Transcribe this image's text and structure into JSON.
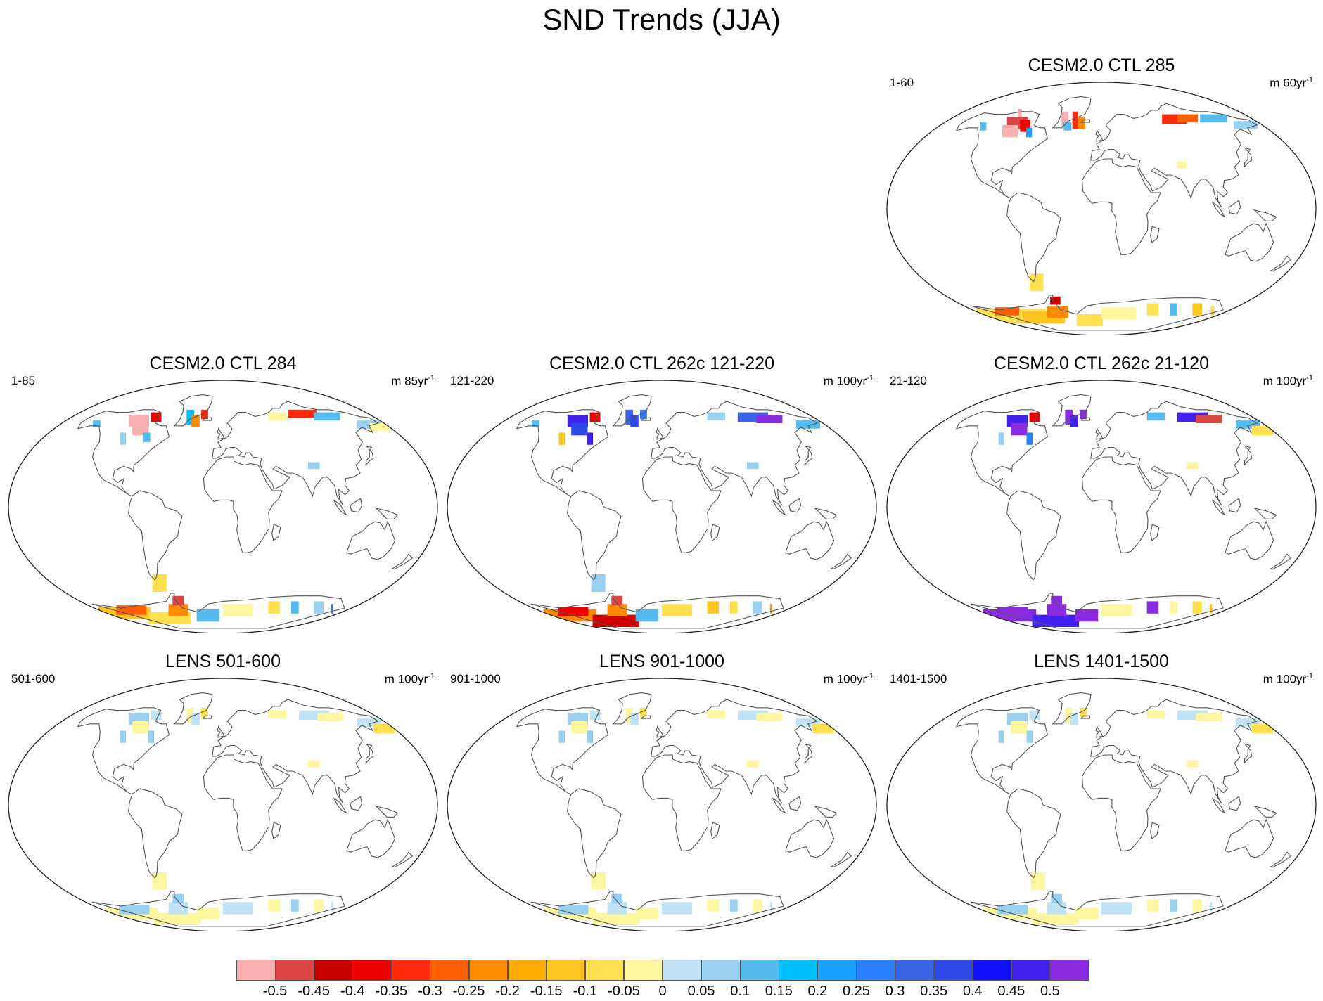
{
  "title": "SND Trends (JJA)",
  "panels": [
    {
      "id": "p1",
      "title": "CESM2.0 CTL 285",
      "range": "1-60",
      "units_prefix": "m 60yr",
      "units_exp": "-1",
      "pattern": "ctl285"
    },
    {
      "id": "p2",
      "title": "CESM2.0 CTL 284",
      "range": "1-85",
      "units_prefix": "m 85yr",
      "units_exp": "-1",
      "pattern": "ctl284"
    },
    {
      "id": "p3",
      "title": "CESM2.0 CTL 262c 121-220",
      "range": "121-220",
      "units_prefix": "m 100yr",
      "units_exp": "-1",
      "pattern": "ctl262a"
    },
    {
      "id": "p4",
      "title": "CESM2.0 CTL 262c 21-120",
      "range": "21-120",
      "units_prefix": "m 100yr",
      "units_exp": "-1",
      "pattern": "ctl262b"
    },
    {
      "id": "p5",
      "title": "LENS 501-600",
      "range": "501-600",
      "units_prefix": "m 100yr",
      "units_exp": "-1",
      "pattern": "lens"
    },
    {
      "id": "p6",
      "title": "LENS 901-1000",
      "range": "901-1000",
      "units_prefix": "m 100yr",
      "units_exp": "-1",
      "pattern": "lens"
    },
    {
      "id": "p7",
      "title": "LENS 1401-1500",
      "range": "1401-1500",
      "units_prefix": "m 100yr",
      "units_exp": "-1",
      "pattern": "lens"
    }
  ],
  "colorbar": {
    "labels": [
      "-0.5",
      "-0.45",
      "-0.4",
      "-0.35",
      "-0.3",
      "-0.25",
      "-0.2",
      "-0.15",
      "-0.1",
      "-0.05",
      "0",
      "0.05",
      "0.1",
      "0.15",
      "0.2",
      "0.25",
      "0.3",
      "0.35",
      "0.4",
      "0.45",
      "0.5"
    ],
    "colors": [
      "#f8b0b0",
      "#dd4444",
      "#cc0000",
      "#ee0000",
      "#ff2a0a",
      "#ff5f00",
      "#ff8a00",
      "#ffaa00",
      "#ffc51f",
      "#ffe050",
      "#fff7a0",
      "#bfe3f5",
      "#99d0ef",
      "#55bcf0",
      "#00bfff",
      "#18a0ff",
      "#2a80ff",
      "#3a64e6",
      "#2f48e8",
      "#1010ff",
      "#4422ee",
      "#8a2be2"
    ]
  }
}
